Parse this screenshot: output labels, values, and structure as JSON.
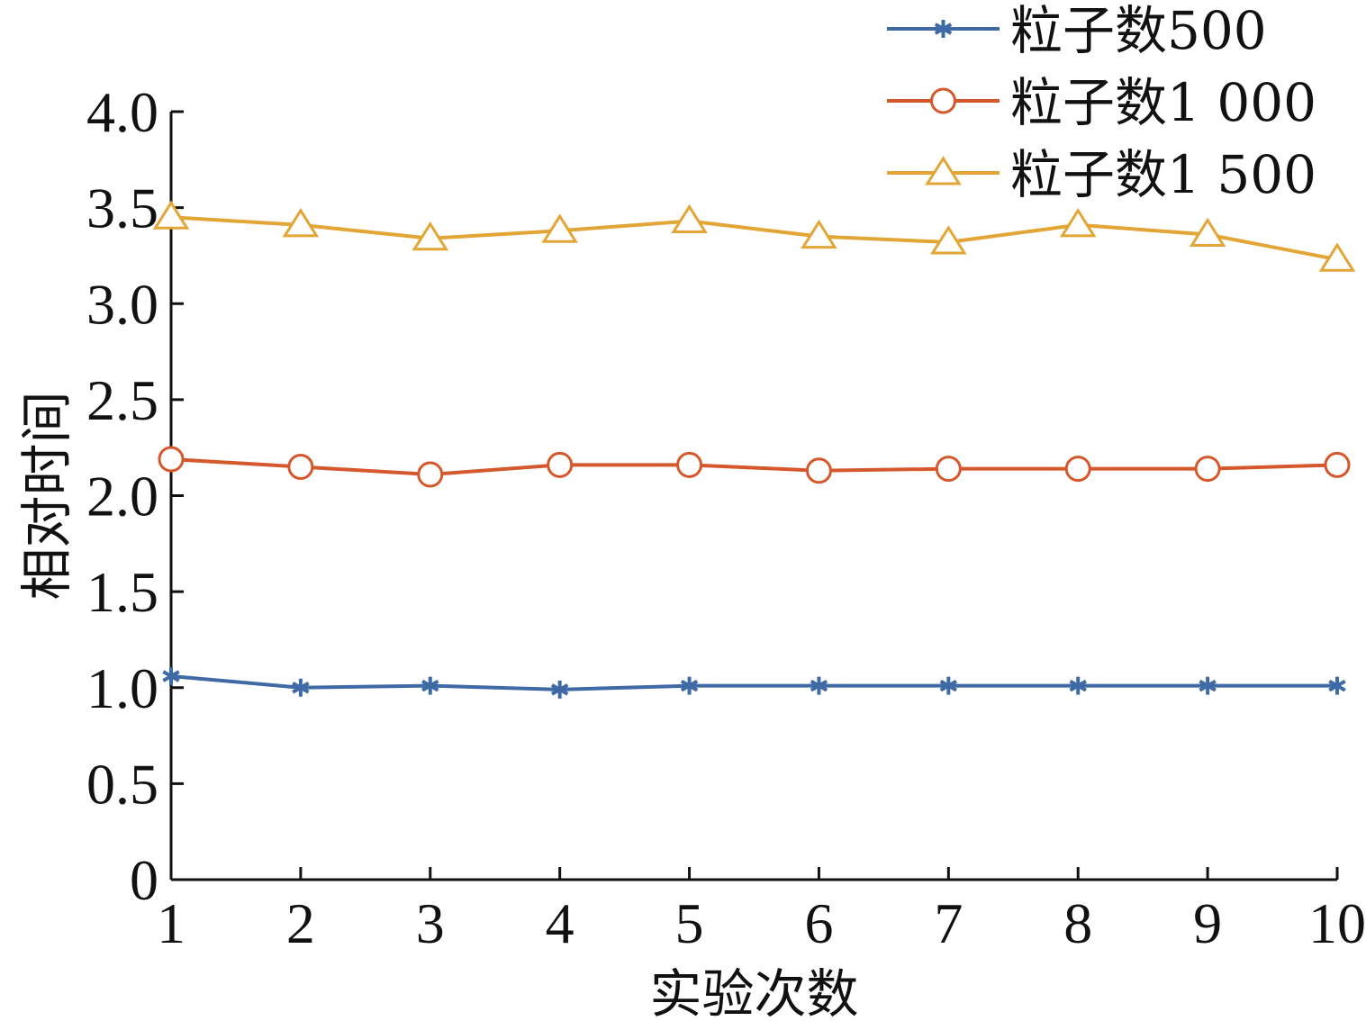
{
  "chart_data": {
    "type": "line",
    "title": "",
    "xlabel": "实验次数",
    "ylabel": "相对时间",
    "x": [
      1,
      2,
      3,
      4,
      5,
      6,
      7,
      8,
      9,
      10
    ],
    "x_tick_labels": [
      "1",
      "2",
      "3",
      "4",
      "5",
      "6",
      "7",
      "8",
      "9",
      "10"
    ],
    "y_tick_labels": [
      "0",
      "0.5",
      "1.0",
      "1.5",
      "2.0",
      "2.5",
      "3.0",
      "3.5",
      "4.0"
    ],
    "y_ticks": [
      0,
      0.5,
      1.0,
      1.5,
      2.0,
      2.5,
      3.0,
      3.5,
      4.0
    ],
    "xlim": [
      1,
      10
    ],
    "ylim": [
      0,
      4.0
    ],
    "grid": false,
    "legend_position": "top-right",
    "series": [
      {
        "name": "粒子数500",
        "marker": "asterisk",
        "color": "#3f6aa6",
        "values": [
          1.06,
          1.0,
          1.01,
          0.99,
          1.01,
          1.01,
          1.01,
          1.01,
          1.01,
          1.01
        ]
      },
      {
        "name": "粒子数1 000",
        "marker": "circle",
        "color": "#d5582c",
        "values": [
          2.19,
          2.15,
          2.11,
          2.16,
          2.16,
          2.13,
          2.14,
          2.14,
          2.14,
          2.16
        ]
      },
      {
        "name": "粒子数1 500",
        "marker": "triangle",
        "color": "#e3a535",
        "values": [
          3.45,
          3.41,
          3.34,
          3.38,
          3.43,
          3.35,
          3.32,
          3.41,
          3.36,
          3.23
        ]
      }
    ]
  }
}
